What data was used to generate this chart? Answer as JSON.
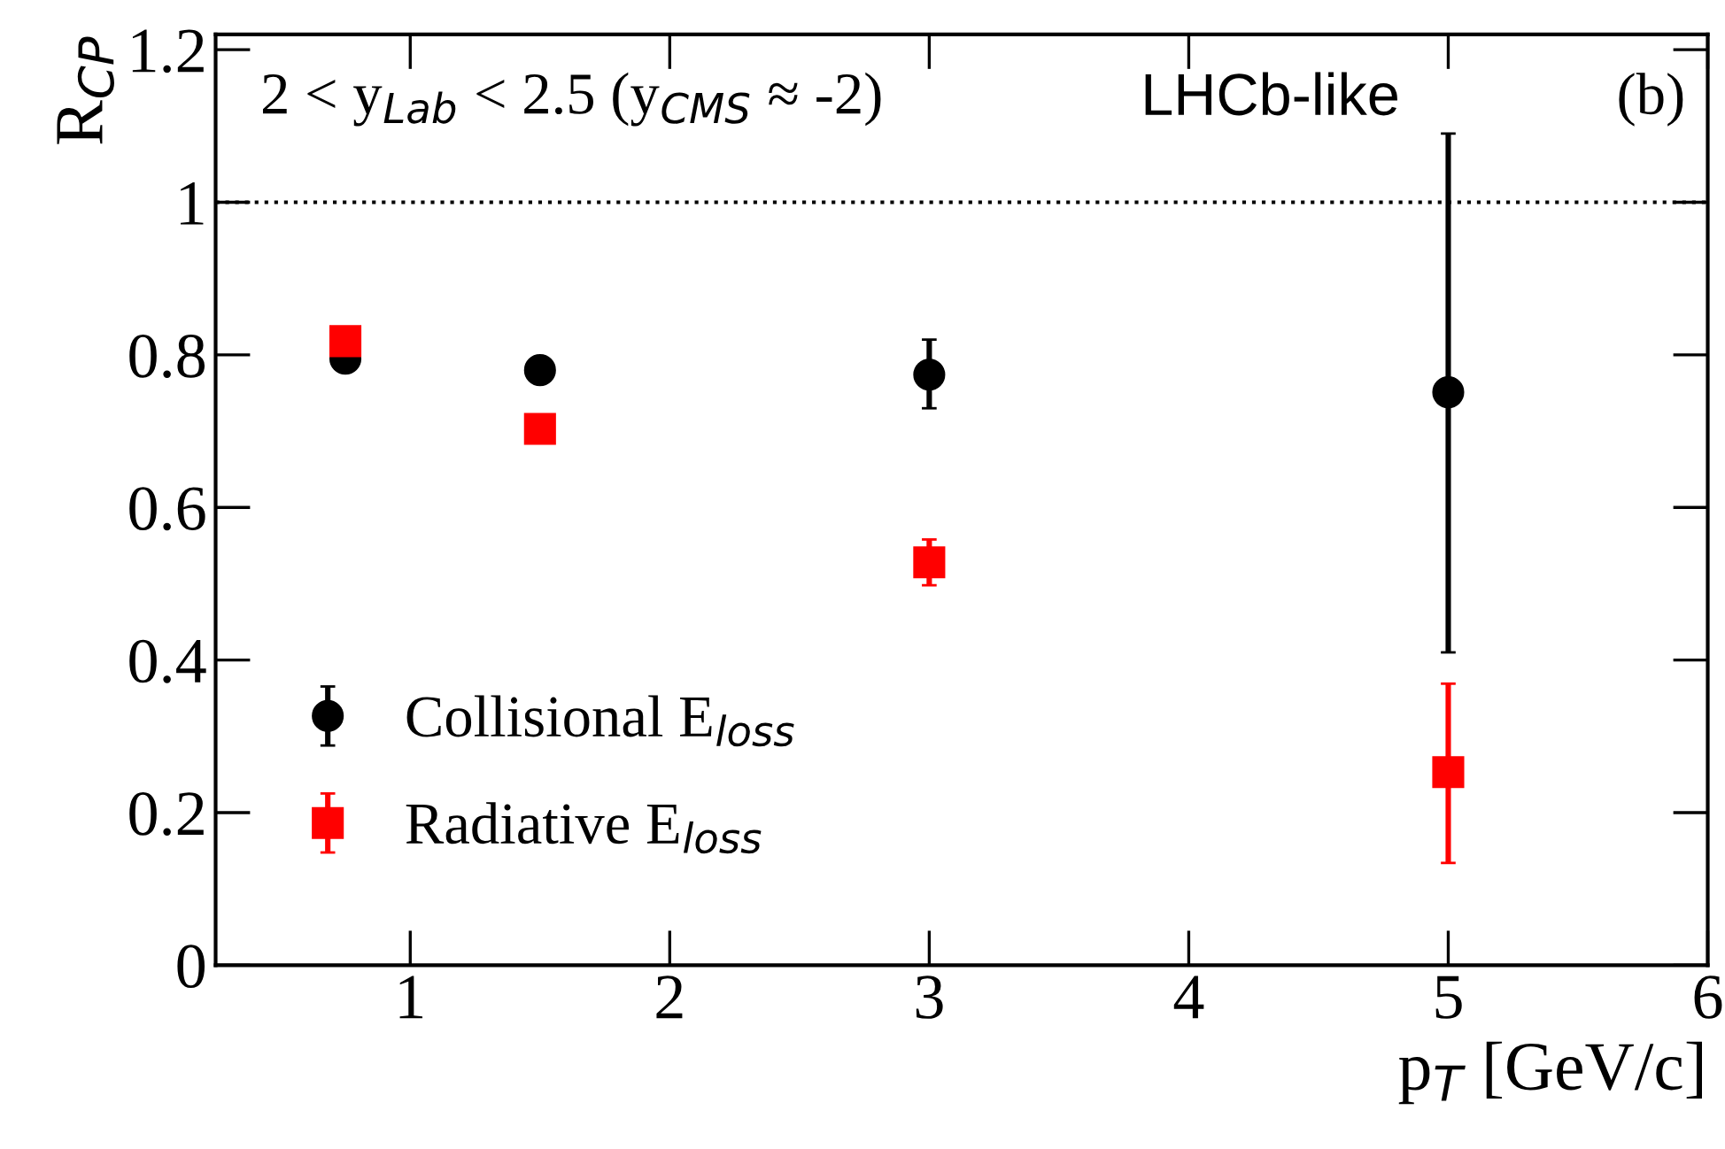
{
  "chart_data": {
    "type": "scatter",
    "xlabel": "p$_{T}$ [GeV/c]",
    "ylabel": "R$_{CP}$",
    "x": [
      0.75,
      1.5,
      3,
      5
    ],
    "series": [
      {
        "name": "Collisional E$_{loss}$",
        "color": "#000000",
        "marker": "circle",
        "values": [
          0.795,
          0.78,
          0.774,
          0.751
        ],
        "errors": [
          null,
          null,
          [
            0.73,
            0.82
          ],
          [
            0.41,
            1.09
          ]
        ]
      },
      {
        "name": "Radiative E$_{loss}$",
        "color": "#ff0000",
        "marker": "square",
        "values": [
          0.818,
          0.703,
          0.528,
          0.253
        ],
        "errors": [
          null,
          null,
          [
            0.498,
            0.558
          ],
          [
            0.134,
            0.369
          ]
        ]
      }
    ],
    "xlim": [
      0.25,
      6
    ],
    "xticks": [
      1,
      2,
      3,
      4,
      5,
      6
    ],
    "ylim": [
      0,
      1.22
    ],
    "yticks": [
      0,
      0.2,
      0.4,
      0.6,
      0.8,
      1,
      1.2
    ],
    "ref_lines": [
      {
        "axis": "y",
        "value": 1,
        "line_style": "dotted",
        "color": "#000000"
      }
    ],
    "annotations": [
      "2 < y$_{Lab}$ < 2.5 (y$_{CMS}$ ≈ -2)",
      "LHCb-like",
      "(b)"
    ],
    "legend": "bottom left",
    "grid": false
  }
}
